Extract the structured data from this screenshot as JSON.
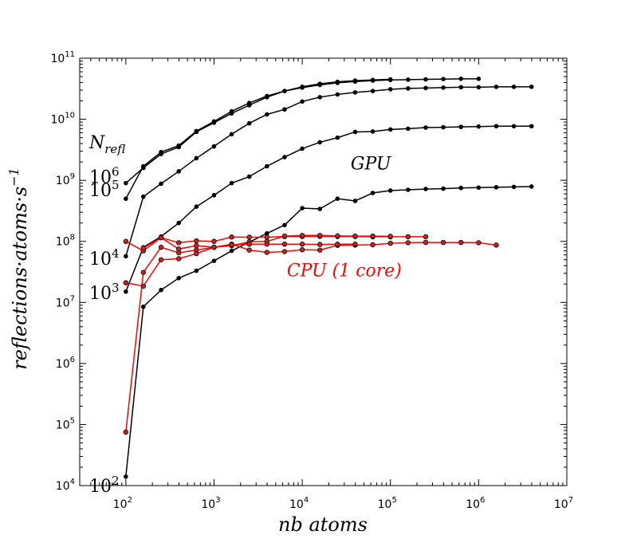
{
  "chart_data": {
    "type": "line",
    "title": "",
    "xlabel": "nb atoms",
    "ylabel": "reflections·atoms·s",
    "ylabel_exponent": "−1",
    "xscale": "log",
    "yscale": "log",
    "xlim": [
      30,
      10000000
    ],
    "ylim": [
      10000,
      100000000000
    ],
    "grid": false,
    "x_ticks": [
      {
        "base": "10",
        "exp": "2",
        "value": 100
      },
      {
        "base": "10",
        "exp": "3",
        "value": 1000
      },
      {
        "base": "10",
        "exp": "4",
        "value": 10000
      },
      {
        "base": "10",
        "exp": "5",
        "value": 100000
      },
      {
        "base": "10",
        "exp": "6",
        "value": 1000000
      },
      {
        "base": "10",
        "exp": "7",
        "value": 10000000
      }
    ],
    "y_ticks": [
      {
        "base": "10",
        "exp": "4",
        "value": 10000
      },
      {
        "base": "10",
        "exp": "5",
        "value": 100000
      },
      {
        "base": "10",
        "exp": "6",
        "value": 1000000
      },
      {
        "base": "10",
        "exp": "7",
        "value": 10000000
      },
      {
        "base": "10",
        "exp": "8",
        "value": 100000000
      },
      {
        "base": "10",
        "exp": "9",
        "value": 1000000000
      },
      {
        "base": "10",
        "exp": "10",
        "value": 10000000000
      },
      {
        "base": "10",
        "exp": "11",
        "value": 100000000000
      }
    ],
    "legend_title": {
      "base": "N",
      "sub": "refl"
    },
    "annotations": [
      {
        "text": "GPU",
        "color": "#000000",
        "x": 60000,
        "y": 1500000000
      },
      {
        "text": "CPU (1 core)",
        "color": "#ff0000",
        "x": 30000,
        "y": 27000000
      }
    ],
    "colors": {
      "gpu": "#000000",
      "cpu_line": "#ff0000",
      "cpu_marker": "#cc2222"
    },
    "series": [
      {
        "name": "GPU Nrefl=10^6",
        "group": "gpu",
        "label_base": "10",
        "label_exp": "6",
        "label_y": 1150000000,
        "x": [
          100,
          158,
          251,
          398,
          631,
          1000,
          1585,
          2512,
          3981,
          6310,
          10000,
          15849,
          25119,
          39811,
          63096,
          100000
        ],
        "y": [
          900000000,
          1600000000,
          2700000000,
          3500000000,
          6200000000,
          8800000000,
          12500000000,
          17000000000,
          23000000000,
          29000000000,
          34000000000,
          38000000000,
          41000000000,
          43000000000,
          44000000000,
          45000000000
        ]
      },
      {
        "name": "GPU Nrefl=10^5 (extended)",
        "group": "gpu",
        "label_base": "10",
        "label_exp": "5",
        "label_y": 700000000,
        "x": [
          100,
          158,
          251,
          398,
          631,
          1000,
          1585,
          2512,
          3981,
          6310,
          10000,
          15849,
          25119,
          39811,
          63096,
          100000,
          158489,
          251189,
          398107,
          630957,
          1000000
        ],
        "y": [
          500000000,
          1700000000,
          2900000000,
          3700000000,
          6400000000,
          9200000000,
          13500000000,
          18500000000,
          24000000000,
          29000000000,
          33000000000,
          36500000000,
          39500000000,
          41500000000,
          43000000000,
          44000000000,
          44500000000,
          45000000000,
          45500000000,
          46000000000,
          46000000000
        ]
      },
      {
        "name": "GPU Nrefl=10^4",
        "group": "gpu",
        "label_base": "10",
        "label_exp": "4",
        "label_y": 53000000,
        "x": [
          100,
          158,
          251,
          398,
          631,
          1000,
          1585,
          2512,
          3981,
          6310,
          10000,
          15849,
          25119,
          39811,
          63096,
          100000,
          158489,
          251189,
          398107,
          630957,
          1000000,
          1584893,
          2511886,
          3981072
        ],
        "y": [
          57000000,
          540000000,
          880000000,
          1400000000,
          2300000000,
          3600000000,
          5700000000,
          8600000000,
          12000000000,
          14500000000,
          19500000000,
          23000000000,
          25500000000,
          27500000000,
          29000000000,
          31000000000,
          32000000000,
          32500000000,
          33000000000,
          33500000000,
          33500000000,
          34000000000,
          34000000000,
          34000000000
        ]
      },
      {
        "name": "GPU Nrefl=10^3",
        "group": "gpu",
        "label_base": "10",
        "label_exp": "3",
        "label_y": 14500000,
        "x": [
          100,
          158,
          251,
          398,
          631,
          1000,
          1585,
          2512,
          3981,
          6310,
          10000,
          15849,
          25119,
          39811,
          63096,
          100000,
          158489,
          251189,
          398107,
          630957,
          1000000,
          1584893,
          2511886,
          3981072
        ],
        "y": [
          15000000,
          80000000,
          120000000,
          200000000,
          370000000,
          570000000,
          900000000,
          1150000000,
          1700000000,
          2400000000,
          3300000000,
          4200000000,
          5000000000,
          6200000000,
          6300000000,
          6800000000,
          7000000000,
          7300000000,
          7400000000,
          7500000000,
          7600000000,
          7700000000,
          7700000000,
          7700000000
        ]
      },
      {
        "name": "GPU Nrefl=10^2",
        "group": "gpu",
        "label_base": "10",
        "label_exp": "2",
        "label_y": 10000,
        "x": [
          100,
          158,
          251,
          398,
          631,
          1000,
          1585,
          2512,
          3981,
          6310,
          10000,
          15849,
          25119,
          39811,
          63096,
          100000,
          158489,
          251189,
          398107,
          630957,
          1000000,
          1584893,
          2511886,
          3981072
        ],
        "y": [
          14000,
          8500000,
          16000000,
          25000000,
          33000000,
          48000000,
          70000000,
          97000000,
          135000000,
          185000000,
          350000000,
          340000000,
          500000000,
          460000000,
          620000000,
          680000000,
          700000000,
          720000000,
          730000000,
          750000000,
          760000000,
          770000000,
          780000000,
          790000000
        ]
      },
      {
        "name": "CPU Nrefl=10^4",
        "group": "cpu",
        "x": [
          100,
          158,
          251,
          398,
          631,
          1000,
          1585,
          2512,
          3981,
          6310,
          10000,
          15849,
          25119,
          39811,
          63096,
          100000,
          158489,
          251189
        ],
        "y": [
          100000000,
          70000000,
          115000000,
          95000000,
          102000000,
          100000000,
          118000000,
          117000000,
          117000000,
          120000000,
          120000000,
          121000000,
          120000000,
          120000000,
          119000000,
          119000000,
          119000000,
          119000000
        ]
      },
      {
        "name": "CPU Nrefl=10^3",
        "group": "cpu",
        "x": [
          158,
          251,
          398,
          631,
          1000,
          1585,
          2512,
          3981,
          6310,
          10000,
          15849,
          25119,
          39811,
          63096,
          100000
        ],
        "y": [
          78000000,
          115000000,
          75000000,
          85000000,
          80000000,
          85000000,
          98000000,
          100000000,
          122000000,
          125000000,
          125000000,
          123000000,
          122000000,
          122000000,
          121000000
        ]
      },
      {
        "name": "CPU Nrefl=10^2",
        "group": "cpu",
        "x": [
          100,
          158,
          251,
          398,
          631,
          1000,
          1585,
          2512,
          3981,
          6310,
          10000,
          15849,
          25119,
          39811,
          63096,
          100000,
          158489,
          251189,
          398107,
          630957,
          1000000,
          1584893
        ],
        "y": [
          75000,
          31000000,
          80000000,
          65000000,
          72000000,
          80000000,
          90000000,
          72000000,
          66000000,
          68000000,
          73000000,
          72000000,
          86000000,
          87000000,
          88000000,
          93000000,
          95000000,
          96000000,
          96000000,
          96000000,
          95000000,
          87000000
        ]
      },
      {
        "name": "CPU Nrefl=10^5",
        "group": "cpu",
        "x": [
          100,
          158,
          251,
          398,
          631,
          1000,
          1585,
          2512,
          3981,
          6310,
          10000,
          15849,
          25119,
          39811
        ],
        "y": [
          21000000,
          18500000,
          50000000,
          52000000,
          63000000,
          80000000,
          88000000,
          90000000,
          90000000,
          90000000,
          90000000,
          89000000,
          90000000,
          90000000
        ]
      }
    ]
  }
}
